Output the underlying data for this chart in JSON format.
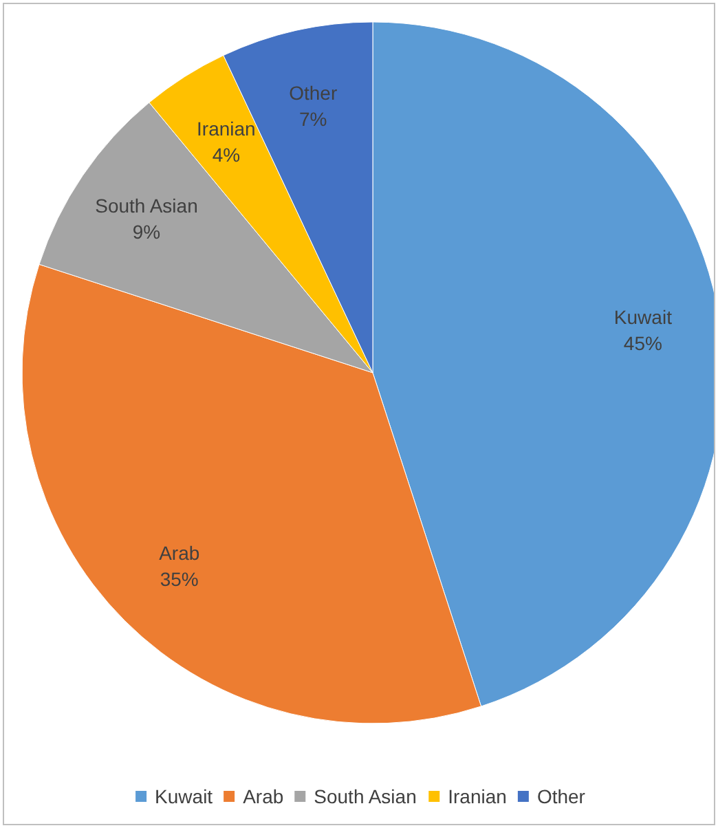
{
  "chart_data": {
    "type": "pie",
    "categories": [
      "Kuwait",
      "Arab",
      "South Asian",
      "Iranian",
      "Other"
    ],
    "values": [
      45,
      35,
      9,
      4,
      7
    ],
    "colors": [
      "#5b9bd5",
      "#ed7d31",
      "#a5a5a5",
      "#ffc000",
      "#4472c4"
    ],
    "value_labels": [
      "45%",
      "35%",
      "9%",
      "4%",
      "7%"
    ],
    "legend": "bottom"
  }
}
